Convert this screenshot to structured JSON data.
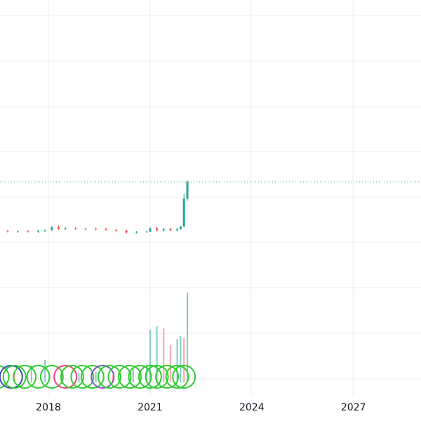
{
  "chart_data": {
    "type": "candlestick",
    "x_axis": {
      "type": "time",
      "range": [
        "2014-09-01",
        "2029-06-01"
      ],
      "tick_labels": [
        "2018",
        "2021",
        "2024",
        "2027"
      ],
      "tick_values": [
        2018,
        2021,
        2024,
        2027
      ]
    },
    "grid": true,
    "price_line_style": "dotted",
    "colors": {
      "up": "#26a69a",
      "down": "#ef5350",
      "volume_up": "#80cbc4",
      "volume_down": "#f7a7a5",
      "marker_green": "#2ecc2e",
      "marker_blue": "#3949ab",
      "marker_pink": "#ec407a",
      "marker_purple": "#7e57c2",
      "grid": "#ececec",
      "price_line": "#26a69a"
    },
    "price_series": {
      "description": "weekly OHLC candles, approx. flat from 2015 to 2021, then a sharp rise at the end",
      "candles": [
        {
          "t": 2015.0,
          "o": 1.0,
          "h": 1.05,
          "l": 0.96,
          "c": 1.02
        },
        {
          "t": 2015.3,
          "o": 1.02,
          "h": 1.06,
          "l": 0.98,
          "c": 1.01
        },
        {
          "t": 2015.6,
          "o": 1.01,
          "h": 1.05,
          "l": 0.97,
          "c": 1.03
        },
        {
          "t": 2015.9,
          "o": 1.03,
          "h": 1.07,
          "l": 0.99,
          "c": 1.02
        },
        {
          "t": 2016.2,
          "o": 1.02,
          "h": 1.06,
          "l": 0.98,
          "c": 1.04
        },
        {
          "t": 2016.5,
          "o": 1.04,
          "h": 1.08,
          "l": 1.0,
          "c": 1.03
        },
        {
          "t": 2016.8,
          "o": 1.03,
          "h": 1.07,
          "l": 0.99,
          "c": 1.02
        },
        {
          "t": 2017.1,
          "o": 1.02,
          "h": 1.06,
          "l": 0.98,
          "c": 1.03
        },
        {
          "t": 2017.4,
          "o": 1.03,
          "h": 1.07,
          "l": 0.99,
          "c": 1.02
        },
        {
          "t": 2017.7,
          "o": 1.02,
          "h": 1.07,
          "l": 0.98,
          "c": 1.05
        },
        {
          "t": 2017.9,
          "o": 1.05,
          "h": 1.09,
          "l": 1.0,
          "c": 1.06
        },
        {
          "t": 2018.1,
          "o": 1.06,
          "h": 1.2,
          "l": 1.04,
          "c": 1.15
        },
        {
          "t": 2018.3,
          "o": 1.15,
          "h": 1.22,
          "l": 1.08,
          "c": 1.1
        },
        {
          "t": 2018.5,
          "o": 1.1,
          "h": 1.16,
          "l": 1.06,
          "c": 1.12
        },
        {
          "t": 2018.8,
          "o": 1.12,
          "h": 1.16,
          "l": 1.07,
          "c": 1.1
        },
        {
          "t": 2019.1,
          "o": 1.1,
          "h": 1.14,
          "l": 1.06,
          "c": 1.11
        },
        {
          "t": 2019.4,
          "o": 1.11,
          "h": 1.15,
          "l": 1.06,
          "c": 1.09
        },
        {
          "t": 2019.7,
          "o": 1.09,
          "h": 1.13,
          "l": 1.04,
          "c": 1.07
        },
        {
          "t": 2020.0,
          "o": 1.07,
          "h": 1.11,
          "l": 1.02,
          "c": 1.05
        },
        {
          "t": 2020.3,
          "o": 1.05,
          "h": 1.08,
          "l": 0.96,
          "c": 0.99
        },
        {
          "t": 2020.6,
          "o": 0.99,
          "h": 1.04,
          "l": 0.96,
          "c": 1.01
        },
        {
          "t": 2020.9,
          "o": 1.01,
          "h": 1.05,
          "l": 0.98,
          "c": 1.02
        },
        {
          "t": 2021.0,
          "o": 1.02,
          "h": 1.16,
          "l": 1.0,
          "c": 1.12
        },
        {
          "t": 2021.2,
          "o": 1.12,
          "h": 1.18,
          "l": 1.03,
          "c": 1.06
        },
        {
          "t": 2021.4,
          "o": 1.06,
          "h": 1.14,
          "l": 1.02,
          "c": 1.1
        },
        {
          "t": 2021.6,
          "o": 1.1,
          "h": 1.14,
          "l": 1.04,
          "c": 1.06
        },
        {
          "t": 2021.8,
          "o": 1.06,
          "h": 1.12,
          "l": 1.04,
          "c": 1.1
        },
        {
          "t": 2021.9,
          "o": 1.1,
          "h": 1.2,
          "l": 1.08,
          "c": 1.18
        },
        {
          "t": 2022.0,
          "o": 1.18,
          "h": 2.2,
          "l": 1.16,
          "c": 2.05
        },
        {
          "t": 2022.1,
          "o": 2.05,
          "h": 2.62,
          "l": 1.98,
          "c": 2.58
        }
      ],
      "last_price": 2.58
    },
    "volume_series": {
      "bars": [
        {
          "t": 2015.0,
          "v": 8,
          "up": true
        },
        {
          "t": 2015.5,
          "v": 10,
          "up": false
        },
        {
          "t": 2016.0,
          "v": 12,
          "up": true
        },
        {
          "t": 2016.5,
          "v": 18,
          "up": true
        },
        {
          "t": 2017.0,
          "v": 14,
          "up": false
        },
        {
          "t": 2017.5,
          "v": 22,
          "up": true
        },
        {
          "t": 2017.9,
          "v": 30,
          "up": true
        },
        {
          "t": 2018.4,
          "v": 16,
          "up": false
        },
        {
          "t": 2018.9,
          "v": 12,
          "up": true
        },
        {
          "t": 2019.4,
          "v": 14,
          "up": true
        },
        {
          "t": 2019.9,
          "v": 10,
          "up": false
        },
        {
          "t": 2020.5,
          "v": 18,
          "up": true
        },
        {
          "t": 2020.9,
          "v": 24,
          "up": true
        },
        {
          "t": 2021.0,
          "v": 70,
          "up": true
        },
        {
          "t": 2021.2,
          "v": 75,
          "up": true
        },
        {
          "t": 2021.4,
          "v": 72,
          "up": false
        },
        {
          "t": 2021.6,
          "v": 50,
          "up": false
        },
        {
          "t": 2021.8,
          "v": 58,
          "up": true
        },
        {
          "t": 2021.9,
          "v": 62,
          "up": true
        },
        {
          "t": 2022.0,
          "v": 60,
          "up": false
        },
        {
          "t": 2022.1,
          "v": 120,
          "up": true
        }
      ]
    },
    "markers": [
      {
        "t": 2014.9,
        "color": "green"
      },
      {
        "t": 2015.3,
        "color": "green"
      },
      {
        "t": 2015.7,
        "color": "green"
      },
      {
        "t": 2016.1,
        "color": "green"
      },
      {
        "t": 2016.5,
        "color": "green"
      },
      {
        "t": 2016.9,
        "color": "blue"
      },
      {
        "t": 2017.0,
        "color": "green"
      },
      {
        "t": 2017.3,
        "color": "green"
      },
      {
        "t": 2017.7,
        "color": "green"
      },
      {
        "t": 2018.1,
        "color": "green"
      },
      {
        "t": 2018.5,
        "color": "pink"
      },
      {
        "t": 2018.7,
        "color": "green"
      },
      {
        "t": 2019.0,
        "color": "green"
      },
      {
        "t": 2019.3,
        "color": "green"
      },
      {
        "t": 2019.6,
        "color": "purple"
      },
      {
        "t": 2019.8,
        "color": "green"
      },
      {
        "t": 2020.1,
        "color": "green"
      },
      {
        "t": 2020.4,
        "color": "green"
      },
      {
        "t": 2020.7,
        "color": "green"
      },
      {
        "t": 2021.0,
        "color": "green"
      },
      {
        "t": 2021.2,
        "color": "green"
      },
      {
        "t": 2021.5,
        "color": "green"
      },
      {
        "t": 2021.8,
        "color": "green"
      },
      {
        "t": 2022.0,
        "color": "green"
      }
    ]
  }
}
